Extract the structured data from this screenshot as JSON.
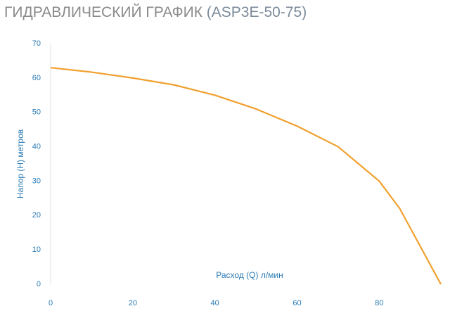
{
  "chart_data": {
    "type": "line",
    "title": "ГИДРАВЛИЧЕСКИЙ ГРАФИК",
    "subtitle": "(ASP3E-50-75)",
    "x_label": "Расход (Q) л/мин",
    "y_label": "Напор (H) метров",
    "x": [
      0,
      10,
      20,
      30,
      40,
      50,
      60,
      70,
      80,
      85,
      90,
      95
    ],
    "series": [
      {
        "color": "#f0a02e",
        "values": [
          63,
          61.7,
          60,
          58,
          55,
          51,
          46,
          40,
          30,
          22,
          11,
          0
        ]
      }
    ],
    "xlim": [
      0,
      95
    ],
    "xticks": [
      0,
      20,
      40,
      60,
      80
    ],
    "ylim": [
      0,
      70
    ],
    "yticks": [
      0,
      10,
      20,
      30,
      40,
      50,
      60,
      70
    ],
    "grid": false
  }
}
